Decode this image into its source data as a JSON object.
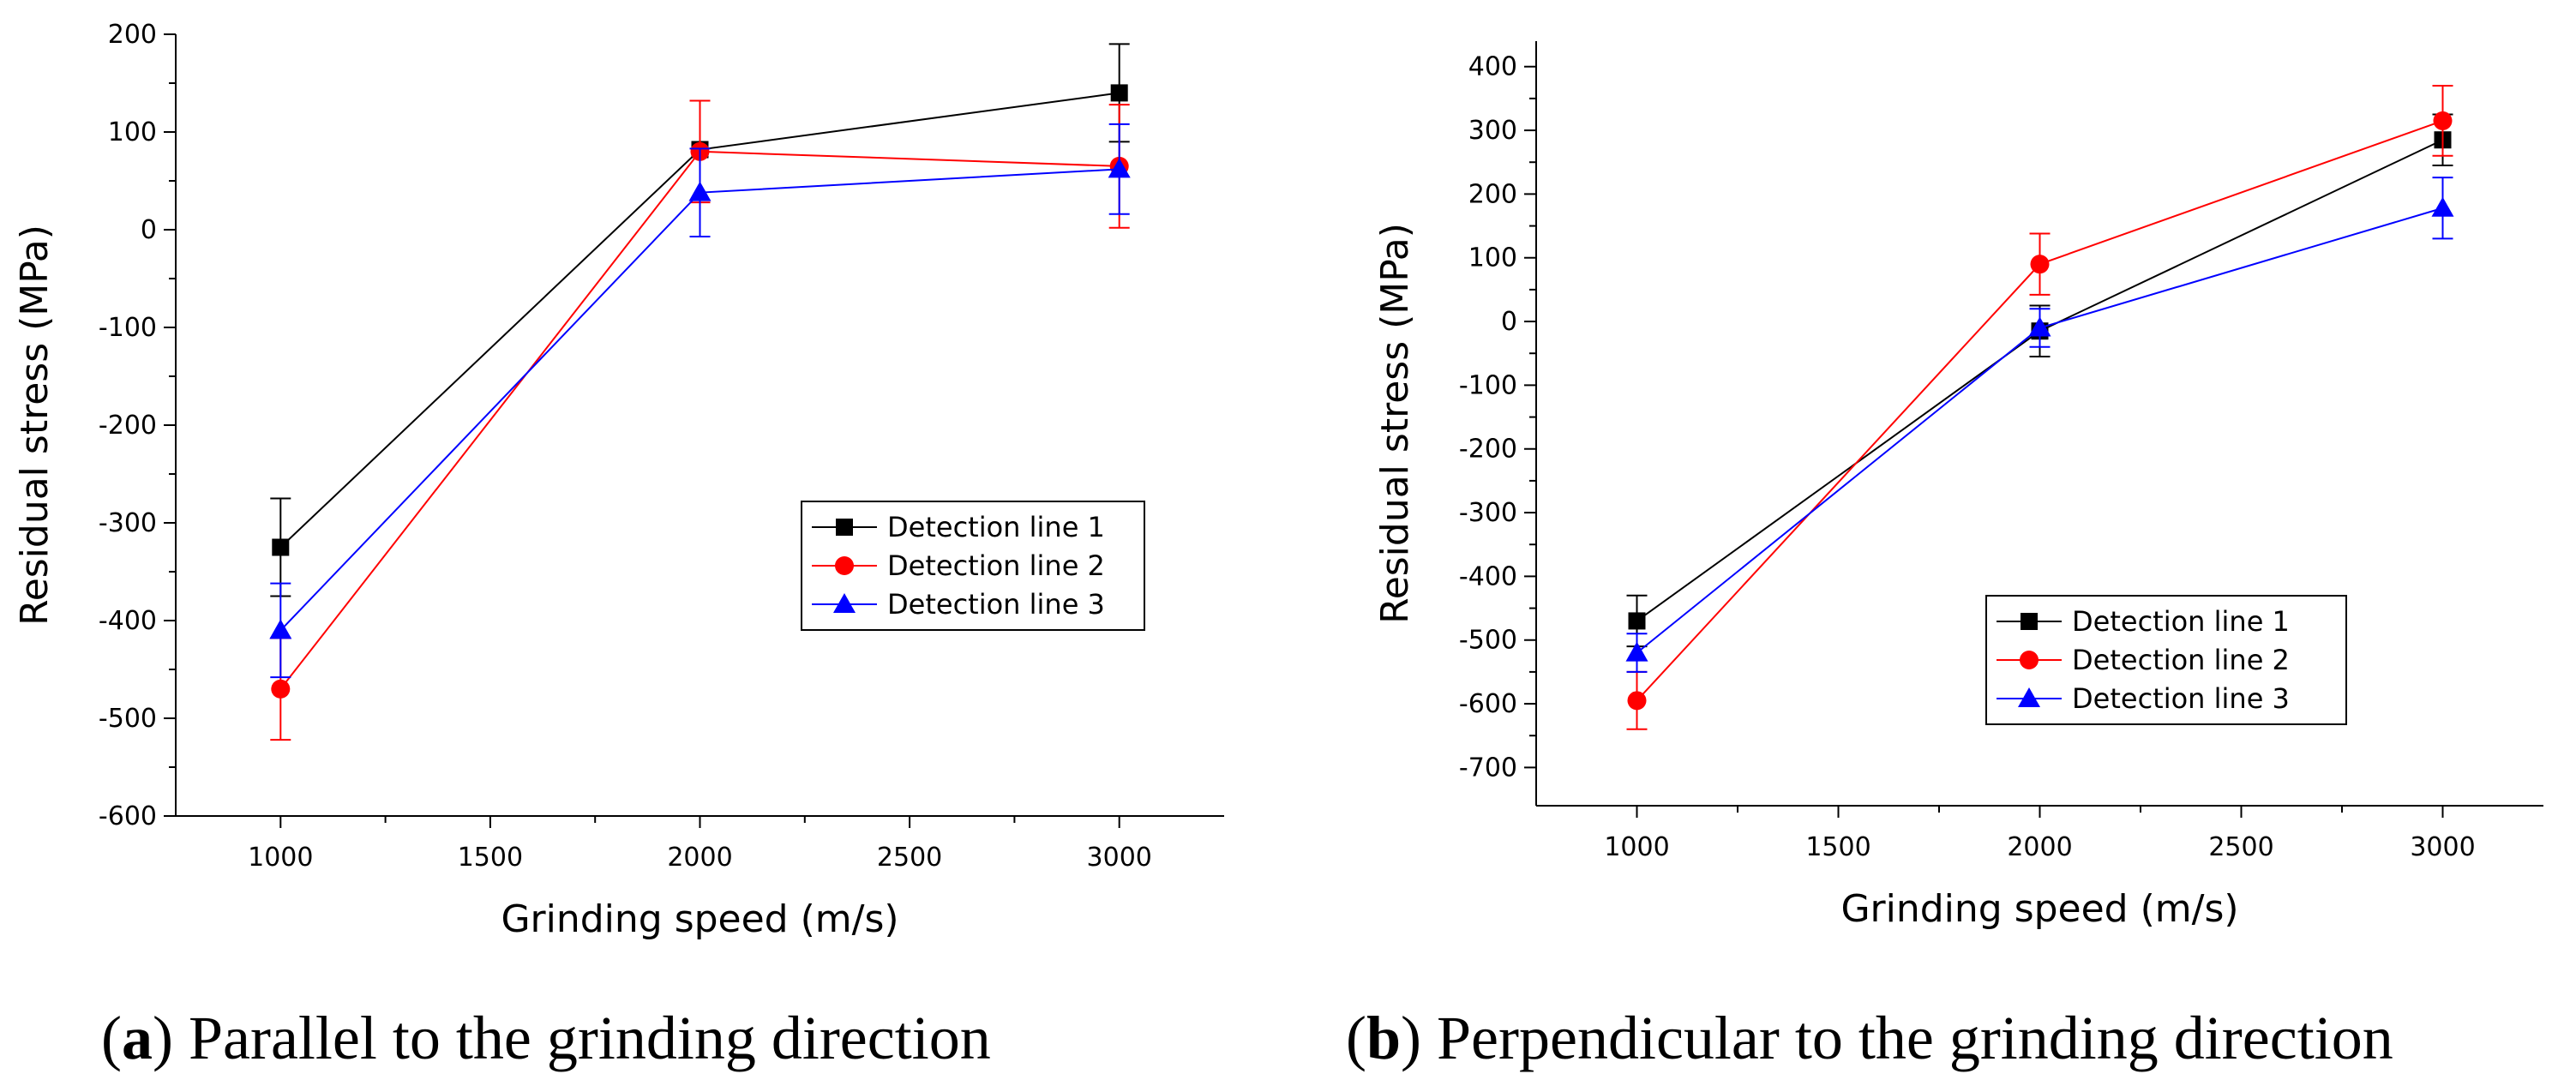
{
  "colors": {
    "series1": "#000000",
    "series2": "#ff0000",
    "series3": "#0000ff"
  },
  "chart_data": [
    {
      "panel": "a",
      "type": "line",
      "caption_label": "a",
      "caption_text": "Parallel to the grinding direction",
      "xlabel": "Grinding speed (m/s)",
      "ylabel": "Residual stress (MPa)",
      "xlim": [
        750,
        3250
      ],
      "ylim": [
        -600,
        200
      ],
      "xticks": [
        1000,
        1500,
        2000,
        2500,
        3000
      ],
      "yticks": [
        -600,
        -500,
        -400,
        -300,
        -200,
        -100,
        0,
        100,
        200
      ],
      "x": [
        1000,
        2000,
        3000
      ],
      "grid": false,
      "legend_position": "center-right",
      "series": [
        {
          "name": "Detection line 1",
          "marker": "square",
          "values": [
            -325,
            82,
            140
          ],
          "errors": [
            50,
            0,
            50
          ]
        },
        {
          "name": "Detection line 2",
          "marker": "circle",
          "values": [
            -470,
            80,
            65
          ],
          "errors": [
            52,
            52,
            63
          ]
        },
        {
          "name": "Detection line 3",
          "marker": "triangle",
          "values": [
            -410,
            38,
            62
          ],
          "errors": [
            48,
            45,
            46
          ]
        }
      ]
    },
    {
      "panel": "b",
      "type": "line",
      "caption_label": "b",
      "caption_text": "Perpendicular to the grinding direction",
      "xlabel": "Grinding speed (m/s)",
      "ylabel": "Residual stress (MPa)",
      "xlim": [
        750,
        3250
      ],
      "ylim": [
        -760,
        440
      ],
      "xticks": [
        1000,
        1500,
        2000,
        2500,
        3000
      ],
      "yticks": [
        -700,
        -600,
        -500,
        -400,
        -300,
        -200,
        -100,
        0,
        100,
        200,
        300,
        400
      ],
      "x": [
        1000,
        2000,
        3000
      ],
      "grid": false,
      "legend_position": "bottom-right",
      "series": [
        {
          "name": "Detection line 1",
          "marker": "square",
          "values": [
            -470,
            -15,
            285
          ],
          "errors": [
            40,
            40,
            40
          ]
        },
        {
          "name": "Detection line 2",
          "marker": "circle",
          "values": [
            -595,
            90,
            315
          ],
          "errors": [
            45,
            48,
            55
          ]
        },
        {
          "name": "Detection line 3",
          "marker": "triangle",
          "values": [
            -520,
            -10,
            178
          ],
          "errors": [
            30,
            30,
            48
          ]
        }
      ]
    }
  ]
}
